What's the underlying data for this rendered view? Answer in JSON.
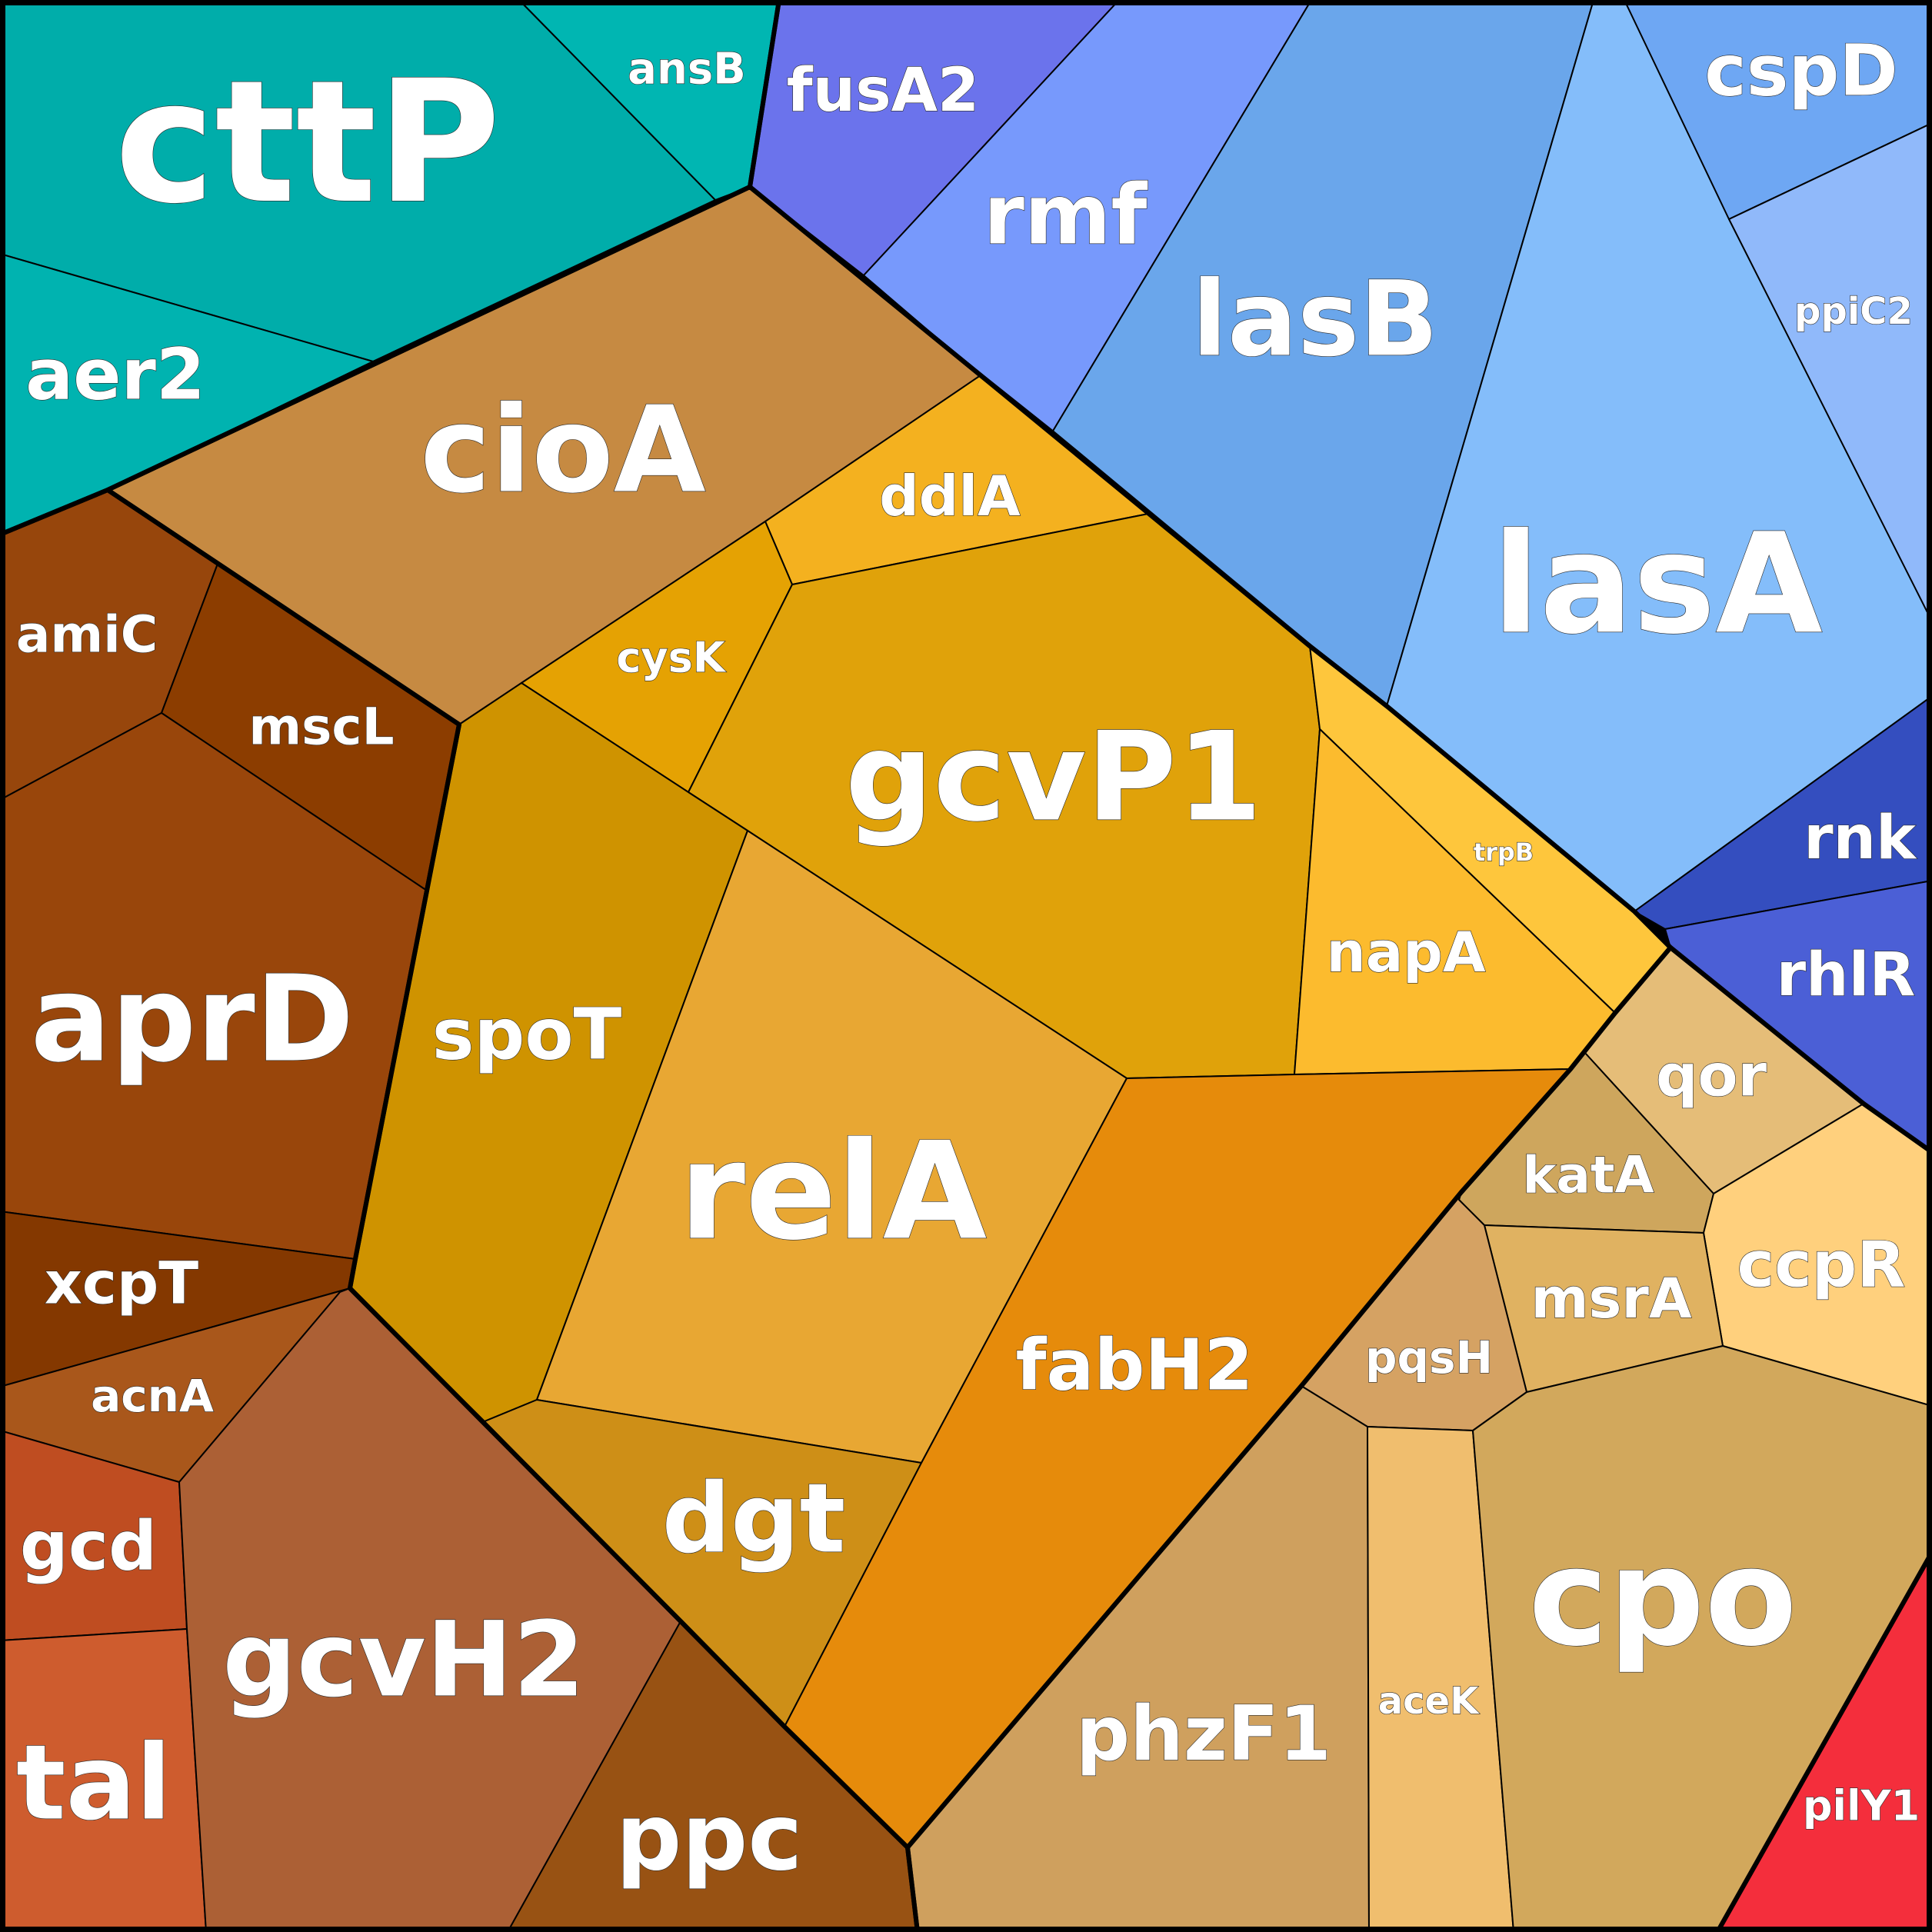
{
  "cells": [
    {
      "id": "cttP",
      "label": "cttP",
      "color": "#00ADAA"
    },
    {
      "id": "ansB",
      "label": "ansB",
      "color": "#00B6B2"
    },
    {
      "id": "aer2",
      "label": "aer2",
      "color": "#00B3B0"
    },
    {
      "id": "fusA2",
      "label": "fusA2",
      "color": "#6B73EC"
    },
    {
      "id": "rmf",
      "label": "rmf",
      "color": "#7799FC"
    },
    {
      "id": "lasB",
      "label": "lasB",
      "color": "#6AA6EB"
    },
    {
      "id": "lasA",
      "label": "lasA",
      "color": "#84BDFA"
    },
    {
      "id": "cspD",
      "label": "cspD",
      "color": "#6EA7F3"
    },
    {
      "id": "ppiC2",
      "label": "ppiC2",
      "color": "#90B9FA"
    },
    {
      "id": "rnk",
      "label": "rnk",
      "color": "#344EBF"
    },
    {
      "id": "rhlR",
      "label": "rhlR",
      "color": "#4B5FD6"
    },
    {
      "id": "cioA",
      "label": "cioA",
      "color": "#C68A42"
    },
    {
      "id": "ddlA",
      "label": "ddlA",
      "color": "#F4B11F"
    },
    {
      "id": "cysK",
      "label": "cysK",
      "color": "#E5A203"
    },
    {
      "id": "gcvP1",
      "label": "gcvP1",
      "color": "#E0A20A"
    },
    {
      "id": "trpB",
      "label": "trpB",
      "color": "#FEC63C"
    },
    {
      "id": "napA",
      "label": "napA",
      "color": "#FCBB2E"
    },
    {
      "id": "spoT",
      "label": "spoT",
      "color": "#CF9300"
    },
    {
      "id": "relA",
      "label": "relA",
      "color": "#E8A733"
    },
    {
      "id": "dgt",
      "label": "dgt",
      "color": "#CE8F17"
    },
    {
      "id": "fabH2",
      "label": "fabH2",
      "color": "#E68B0B"
    },
    {
      "id": "amiC",
      "label": "amiC",
      "color": "#97460C"
    },
    {
      "id": "mscL",
      "label": "mscL",
      "color": "#8C3D00"
    },
    {
      "id": "aprD",
      "label": "aprD",
      "color": "#99460B"
    },
    {
      "id": "xcpT",
      "label": "xcpT",
      "color": "#843800"
    },
    {
      "id": "acnA",
      "label": "acnA",
      "color": "#A9571B"
    },
    {
      "id": "gcd",
      "label": "gcd",
      "color": "#BF4D21"
    },
    {
      "id": "tal",
      "label": "tal",
      "color": "#CE5C2E"
    },
    {
      "id": "gcvH2",
      "label": "gcvH2",
      "color": "#AC6035"
    },
    {
      "id": "ppc",
      "label": "ppc",
      "color": "#985213"
    },
    {
      "id": "qor",
      "label": "qor",
      "color": "#E5BD78"
    },
    {
      "id": "katA",
      "label": "katA",
      "color": "#CEA65D"
    },
    {
      "id": "ccpR",
      "label": "ccpR",
      "color": "#FFD07D"
    },
    {
      "id": "msrA",
      "label": "msrA",
      "color": "#E0B261"
    },
    {
      "id": "pqsH",
      "label": "pqsH",
      "color": "#D5A263"
    },
    {
      "id": "phzF1",
      "label": "phzF1",
      "color": "#CFA05E"
    },
    {
      "id": "aceK",
      "label": "aceK",
      "color": "#F0BE6E"
    },
    {
      "id": "cpo",
      "label": "cpo",
      "color": "#D2A85C"
    },
    {
      "id": "pilY1",
      "label": "pilY1",
      "color": "#F42E3C"
    }
  ]
}
